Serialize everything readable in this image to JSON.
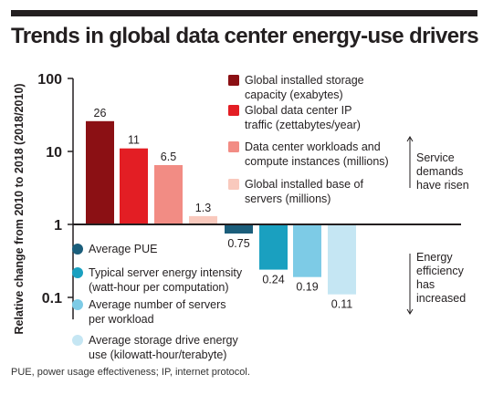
{
  "title": "Trends in global data center energy-use drivers",
  "footnote": "PUE, power usage effectiveness; IP, internet protocol.",
  "chart_data": {
    "type": "bar",
    "title": "Trends in global data center energy-use drivers",
    "ylabel": "Relative change from 2010 to 2018 (2018/2010)",
    "yscale": "log",
    "ylim": [
      0.05,
      100
    ],
    "yticks": [
      100,
      10,
      1,
      0.1
    ],
    "ytick_labels": [
      "100",
      "10",
      "1",
      "0.1"
    ],
    "baseline": 1,
    "grid": false,
    "legend_placement": "inside, beside bars",
    "series": [
      {
        "name": "Global installed storage capacity (exabytes)",
        "value": 26,
        "label": "26",
        "color": "#8b1014",
        "group": "demand"
      },
      {
        "name": "Global data center IP traffic (zettabytes/year)",
        "value": 11,
        "label": "11",
        "color": "#e31e24",
        "group": "demand"
      },
      {
        "name": "Data center workloads and compute instances (millions)",
        "value": 6.5,
        "label": "6.5",
        "color": "#f28c84",
        "group": "demand"
      },
      {
        "name": "Global installed base of servers (millions)",
        "value": 1.3,
        "label": "1.3",
        "color": "#f9c9bd",
        "group": "demand"
      },
      {
        "name": "Average PUE",
        "value": 0.75,
        "label": "0.75",
        "color": "#1b5e7b",
        "group": "efficiency"
      },
      {
        "name": "Typical server energy intensity (watt-hour per computation)",
        "value": 0.24,
        "label": "0.24",
        "color": "#1aa0c0",
        "group": "efficiency"
      },
      {
        "name": "Average number of servers per workload",
        "value": 0.19,
        "label": "0.19",
        "color": "#7dcbe6",
        "group": "efficiency"
      },
      {
        "name": "Average storage drive energy use (kilowatt-hour/terabyte)",
        "value": 0.11,
        "label": "0.11",
        "color": "#c5e6f3",
        "group": "efficiency"
      }
    ],
    "legend_demand": [
      {
        "lines": [
          "Global installed storage",
          "capacity (exabytes)"
        ],
        "color": "#8b1014"
      },
      {
        "lines": [
          "Global data center IP",
          "traffic (zettabytes/year)"
        ],
        "color": "#e31e24"
      },
      {
        "lines": [
          "Data center workloads and",
          "compute instances (millions)"
        ],
        "color": "#f28c84"
      },
      {
        "lines": [
          "Global installed base of",
          "servers (millions)"
        ],
        "color": "#f9c9bd"
      }
    ],
    "legend_efficiency": [
      {
        "lines": [
          "Average PUE"
        ],
        "color": "#1b5e7b"
      },
      {
        "lines": [
          "Typical server energy intensity",
          "(watt-hour per computation)"
        ],
        "color": "#1aa0c0"
      },
      {
        "lines": [
          "Average number of servers",
          "per workload"
        ],
        "color": "#7dcbe6"
      },
      {
        "lines": [
          "Average storage drive energy",
          "use (kilowatt-hour/terabyte)"
        ],
        "color": "#c5e6f3"
      }
    ],
    "annotations": [
      {
        "lines": [
          "Service",
          "demands",
          "have risen"
        ],
        "direction": "up"
      },
      {
        "lines": [
          "Energy",
          "efficiency",
          "has",
          "increased"
        ],
        "direction": "down"
      }
    ]
  }
}
